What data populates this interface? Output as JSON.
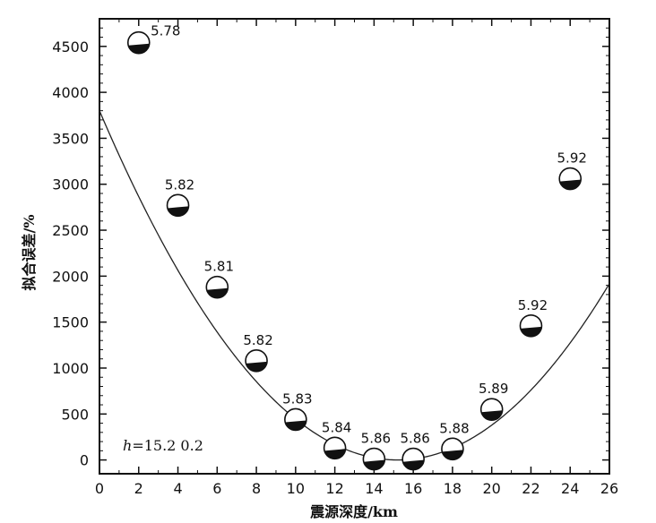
{
  "chart_data": {
    "type": "scatter",
    "xlabel": "震源深度/km",
    "ylabel": "拟合误差/%",
    "xlim": [
      0,
      26
    ],
    "ylim": [
      -150,
      4800
    ],
    "x_ticks": [
      0,
      2,
      4,
      6,
      8,
      10,
      12,
      14,
      16,
      18,
      20,
      22,
      24,
      26
    ],
    "y_ticks": [
      0,
      500,
      1000,
      1500,
      2000,
      2500,
      3000,
      3500,
      4000,
      4500
    ],
    "x_tick_labels": [
      "0",
      "2",
      "4",
      "6",
      "8",
      "10",
      "12",
      "14",
      "16",
      "18",
      "20",
      "22",
      "24",
      "26"
    ],
    "y_tick_labels": [
      "0",
      "500",
      "1000",
      "1500",
      "2000",
      "2500",
      "3000",
      "3500",
      "4000",
      "4500"
    ],
    "grid": false,
    "annotation": {
      "h_symbol": "h",
      "text": "=15.2   0.2"
    },
    "fit_curve": {
      "type": "quadratic",
      "vertex_x": 15.2,
      "vertex_y": 0,
      "y_at_0": 3800
    },
    "points": [
      {
        "x": 2,
        "y": 4540,
        "magnitude": "5.78"
      },
      {
        "x": 4,
        "y": 2770,
        "magnitude": "5.82"
      },
      {
        "x": 6,
        "y": 1880,
        "magnitude": "5.81"
      },
      {
        "x": 8,
        "y": 1080,
        "magnitude": "5.82"
      },
      {
        "x": 10,
        "y": 440,
        "magnitude": "5.83"
      },
      {
        "x": 12,
        "y": 130,
        "magnitude": "5.84"
      },
      {
        "x": 14,
        "y": 10,
        "magnitude": "5.86"
      },
      {
        "x": 16,
        "y": 10,
        "magnitude": "5.86"
      },
      {
        "x": 18,
        "y": 120,
        "magnitude": "5.88"
      },
      {
        "x": 20,
        "y": 550,
        "magnitude": "5.89"
      },
      {
        "x": 22,
        "y": 1460,
        "magnitude": "5.92"
      },
      {
        "x": 24,
        "y": 3060,
        "magnitude": "5.92"
      }
    ]
  }
}
